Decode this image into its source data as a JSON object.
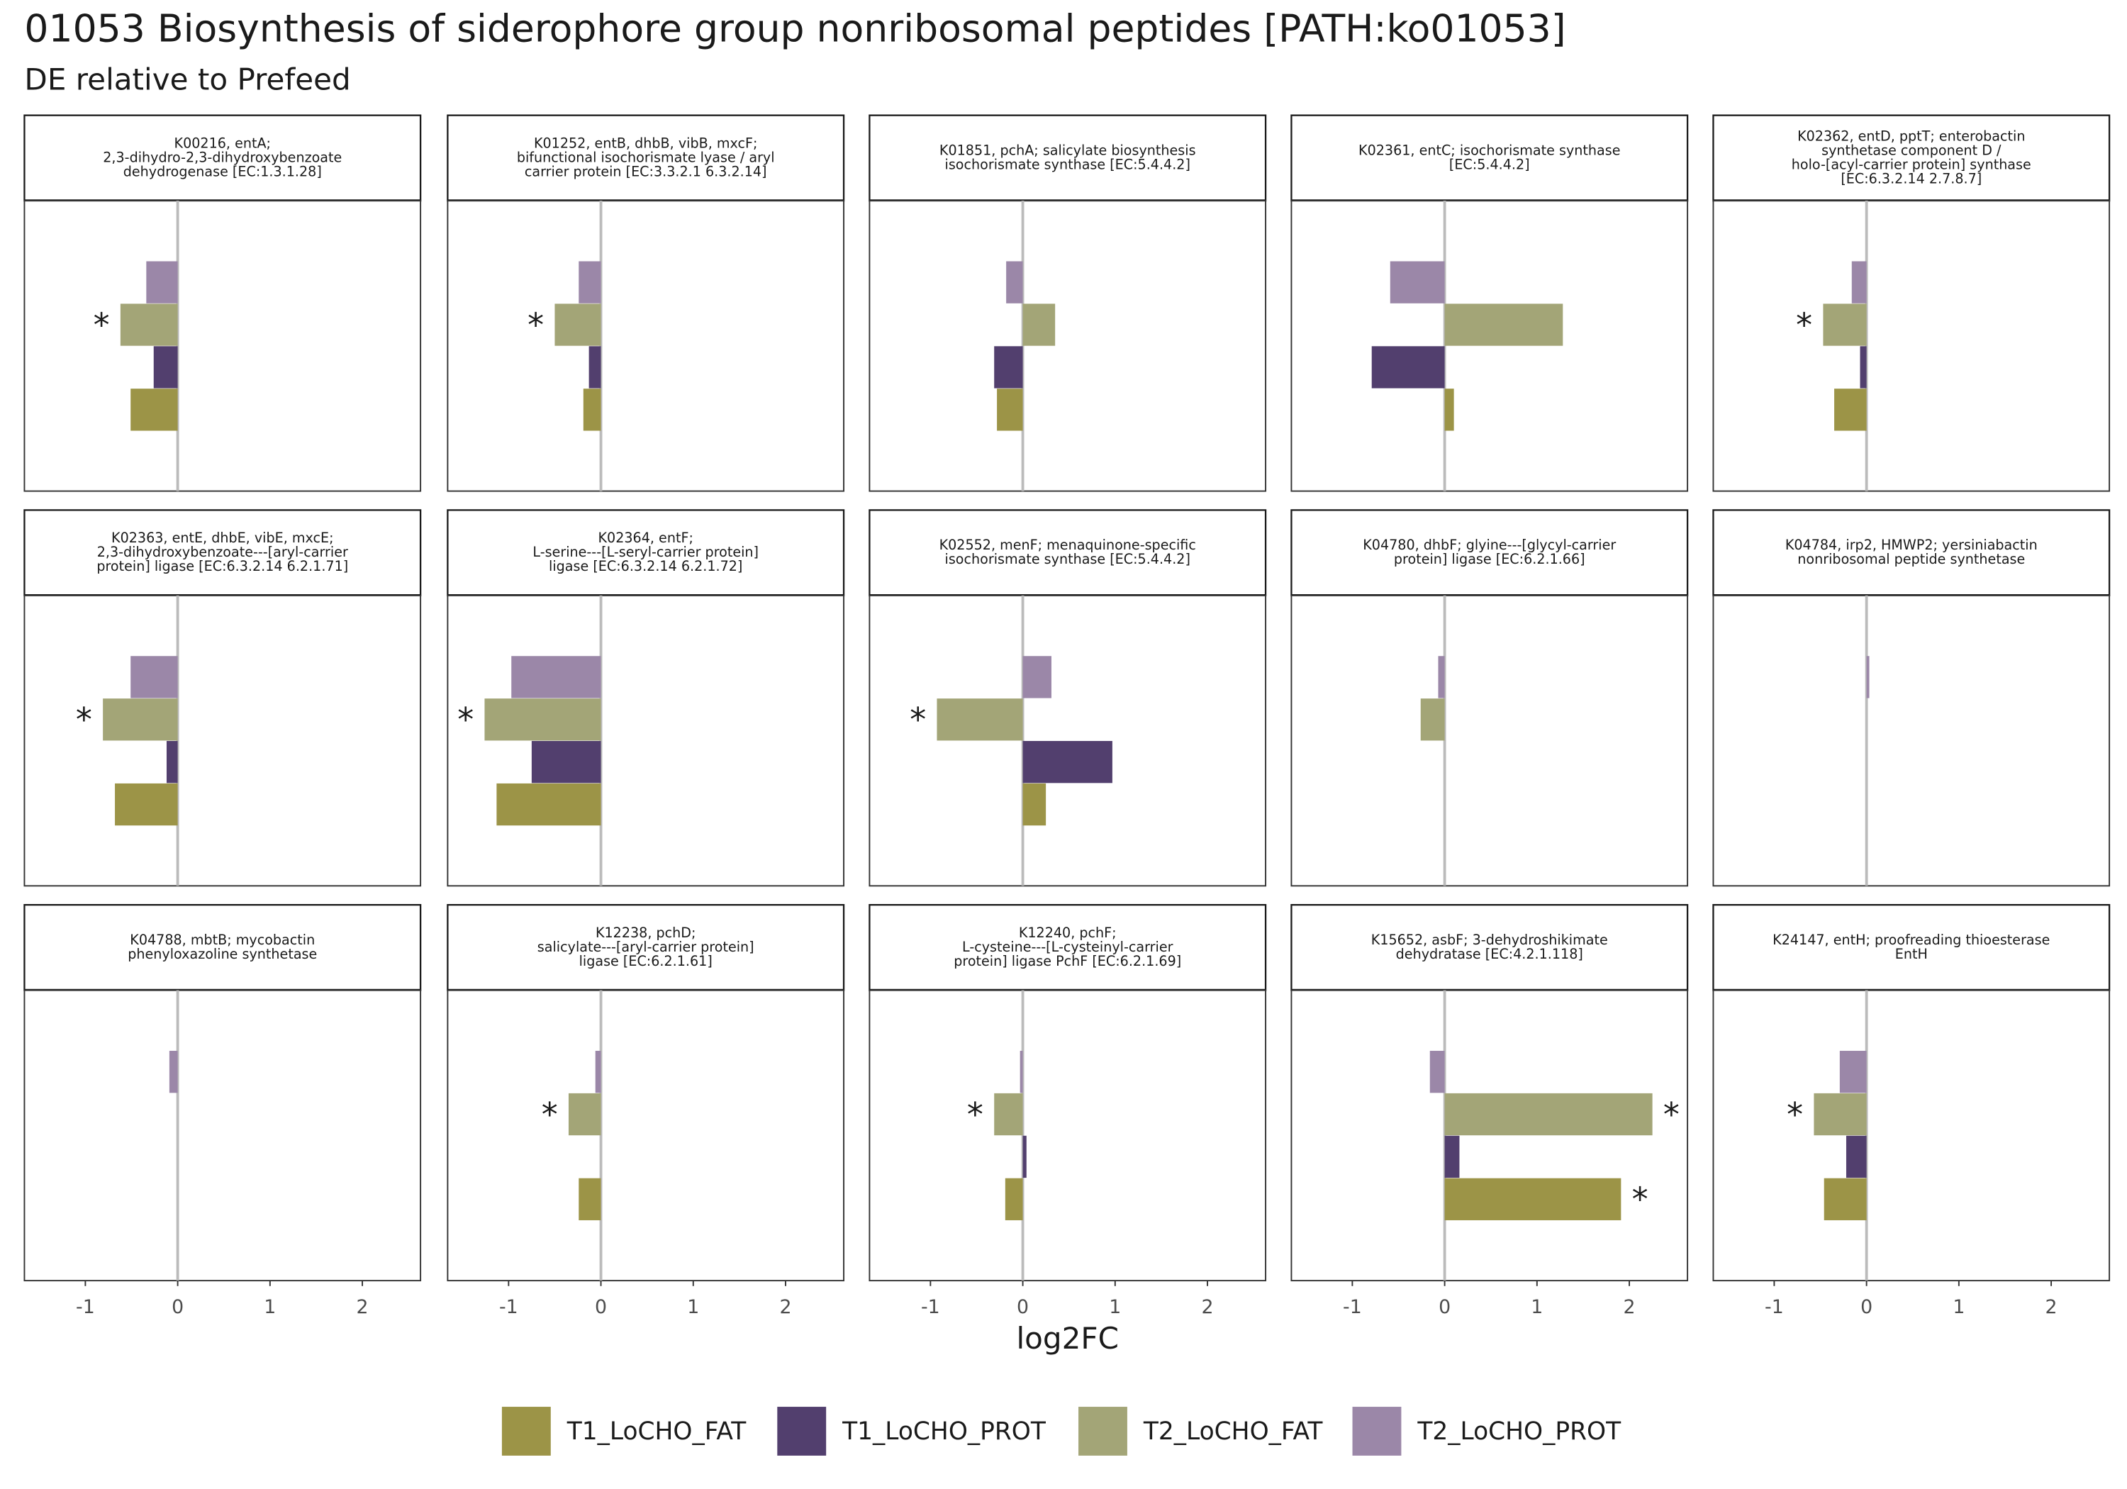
{
  "chart_data": {
    "type": "bar",
    "orientation": "horizontal",
    "title": "01053 Biosynthesis of siderophore group nonribosomal peptides [PATH:ko01053]",
    "subtitle": "DE relative to Prefeed",
    "x_label": "log2FC",
    "facets": [
      [
        "K00216, entA;",
        "2,3-dihydro-2,3-dihydroxybenzoate",
        "dehydrogenase [EC:1.3.1.28]"
      ],
      [
        "K01252, entB, dhbB, vibB, mxcF;",
        "bifunctional isochorismate lyase / aryl",
        "carrier protein [EC:3.3.2.1 6.3.2.14]"
      ],
      [
        "K01851, pchA; salicylate biosynthesis",
        "isochorismate synthase [EC:5.4.4.2]"
      ],
      [
        "K02361, entC; isochorismate synthase",
        "[EC:5.4.4.2]"
      ],
      [
        "K02362, entD, pptT; enterobactin",
        "synthetase component D /",
        "holo-[acyl-carrier protein] synthase",
        "[EC:6.3.2.14 2.7.8.7]"
      ],
      [
        "K02363, entE, dhbE, vibE, mxcE;",
        "2,3-dihydroxybenzoate---[aryl-carrier",
        "protein] ligase [EC:6.3.2.14 6.2.1.71]"
      ],
      [
        "K02364, entF;",
        "L-serine---[L-seryl-carrier protein]",
        "ligase [EC:6.3.2.14 6.2.1.72]"
      ],
      [
        "K02552, menF; menaquinone-specific",
        "isochorismate synthase [EC:5.4.4.2]"
      ],
      [
        "K04780, dhbF; glyine---[glycyl-carrier",
        "protein] ligase [EC:6.2.1.66]"
      ],
      [
        "K04784, irp2, HMWP2; yersiniabactin",
        "nonribosomal peptide synthetase"
      ],
      [
        "K04788, mbtB; mycobactin",
        "phenyloxazoline synthetase"
      ],
      [
        "K12238, pchD;",
        "salicylate---[aryl-carrier protein]",
        "ligase [EC:6.2.1.61]"
      ],
      [
        "K12240, pchF;",
        "L-cysteine---[L-cysteinyl-carrier",
        "protein] ligase PchF [EC:6.2.1.69]"
      ],
      [
        "K15652, asbF; 3-dehydroshikimate",
        "dehydratase [EC:4.2.1.118]"
      ],
      [
        "K24147, entH; proofreading thioesterase",
        "EntH"
      ]
    ],
    "series": [
      {
        "name": "T1_LoCHO_FAT",
        "color": "#9c9447",
        "values": [
          -0.51,
          -0.19,
          -0.28,
          0.1,
          -0.35,
          -0.68,
          -1.13,
          0.25,
          null,
          null,
          null,
          -0.24,
          -0.19,
          1.91,
          -0.46
        ],
        "significance": [
          null,
          null,
          null,
          null,
          null,
          null,
          null,
          null,
          null,
          null,
          null,
          null,
          null,
          "*",
          null
        ]
      },
      {
        "name": "T1_LoCHO_PROT",
        "color": "#523f6e",
        "values": [
          -0.26,
          -0.13,
          -0.31,
          -0.79,
          -0.07,
          -0.12,
          -0.75,
          0.97,
          null,
          null,
          null,
          null,
          0.04,
          0.16,
          -0.22
        ],
        "significance": [
          null,
          null,
          null,
          null,
          null,
          null,
          null,
          null,
          null,
          null,
          null,
          null,
          null,
          null,
          null
        ]
      },
      {
        "name": "T2_LoCHO_FAT",
        "color": "#a3a577",
        "values": [
          -0.62,
          -0.5,
          0.35,
          1.28,
          -0.47,
          -0.81,
          -1.26,
          -0.93,
          -0.26,
          null,
          null,
          -0.35,
          -0.31,
          2.25,
          -0.57
        ],
        "significance": [
          "*",
          "*",
          null,
          null,
          "*",
          "*",
          "*",
          "*",
          null,
          null,
          null,
          "*",
          "*",
          "*",
          "*"
        ]
      },
      {
        "name": "T2_LoCHO_PROT",
        "color": "#9b87a8",
        "values": [
          -0.34,
          -0.24,
          -0.18,
          -0.59,
          -0.16,
          -0.51,
          -0.97,
          0.31,
          -0.07,
          0.03,
          -0.09,
          -0.06,
          -0.03,
          -0.16,
          -0.29
        ],
        "significance": [
          null,
          null,
          null,
          null,
          null,
          null,
          null,
          null,
          null,
          null,
          null,
          null,
          null,
          null,
          null
        ]
      }
    ],
    "xlim": [
      -1.66,
      2.63
    ],
    "xticks": [
      -1,
      0,
      1,
      2
    ],
    "zero_line": true,
    "legend": "bottom"
  }
}
